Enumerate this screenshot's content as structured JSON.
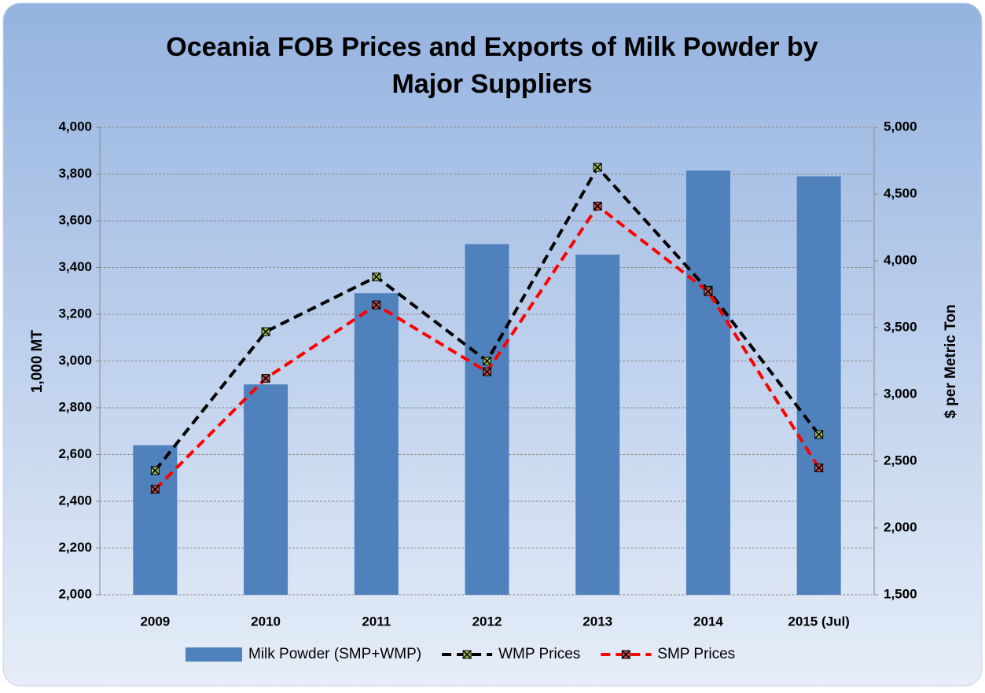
{
  "chart_data": {
    "type": "bar-line",
    "title": "Oceania FOB Prices and Exports of Milk Powder by Major Suppliers",
    "ylabel": "1,000 MT",
    "y2label": "$ per Metric Ton",
    "categories": [
      "2009",
      "2010",
      "2011",
      "2012",
      "2013",
      "2014",
      "2015 (Jul)"
    ],
    "series": [
      {
        "name": "Milk Powder (SMP+WMP)",
        "kind": "bar",
        "color": "#4f81bd",
        "values": [
          2640,
          2900,
          3290,
          3500,
          3455,
          3815,
          3790
        ]
      },
      {
        "name": "WMP Prices",
        "kind": "line",
        "axis": "y2",
        "color": "#000000",
        "marker_color": "#9bbb59",
        "values": [
          2430,
          3470,
          3880,
          3250,
          4700,
          3780,
          2700
        ]
      },
      {
        "name": "SMP Prices",
        "kind": "line",
        "axis": "y2",
        "color": "#ff0000",
        "marker_color": "#c0504d",
        "values": [
          2290,
          3120,
          3670,
          3170,
          4410,
          3770,
          2450
        ]
      }
    ],
    "ylim": [
      2000,
      4000
    ],
    "yticks": [
      {
        "value": 2000,
        "label": "2,000"
      },
      {
        "value": 2200,
        "label": "2,200"
      },
      {
        "value": 2400,
        "label": "2,400"
      },
      {
        "value": 2600,
        "label": "2,600"
      },
      {
        "value": 2800,
        "label": "2,800"
      },
      {
        "value": 3000,
        "label": "3,000"
      },
      {
        "value": 3200,
        "label": "3,200"
      },
      {
        "value": 3400,
        "label": "3,400"
      },
      {
        "value": 3600,
        "label": "3,600"
      },
      {
        "value": 3800,
        "label": "3,800"
      },
      {
        "value": 4000,
        "label": "4,000"
      }
    ],
    "y2lim": [
      1500,
      5000
    ],
    "y2ticks": [
      {
        "value": 1500,
        "label": "1,500"
      },
      {
        "value": 2000,
        "label": "2,000"
      },
      {
        "value": 2500,
        "label": "2,500"
      },
      {
        "value": 3000,
        "label": "3,000"
      },
      {
        "value": 3500,
        "label": "3,500"
      },
      {
        "value": 4000,
        "label": "4,000"
      },
      {
        "value": 4500,
        "label": "4,500"
      },
      {
        "value": 5000,
        "label": "5,000"
      }
    ],
    "grid": true,
    "legend": "bottom"
  }
}
